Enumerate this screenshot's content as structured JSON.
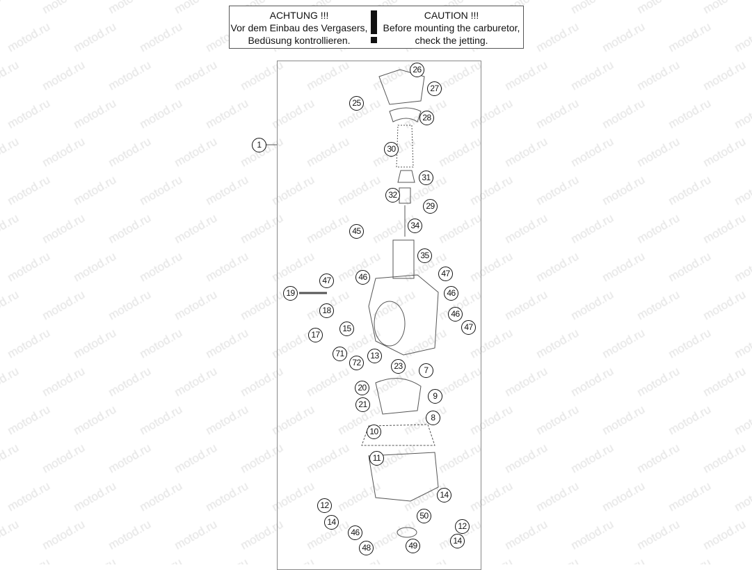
{
  "watermark": "motod.ru",
  "caution": {
    "de_title": "ACHTUNG !!!",
    "de_line1": "Vor dem Einbau des Vergasers,",
    "de_line2": "Bedüsung kontrollieren.",
    "en_title": "CAUTION !!!",
    "en_line1": "Before mounting the carburetor,",
    "en_line2": "check the jetting."
  },
  "callouts": [
    "26",
    "27",
    "25",
    "28",
    "1",
    "30",
    "31",
    "32",
    "29",
    "34",
    "45",
    "35",
    "47",
    "46",
    "47",
    "46",
    "19",
    "18",
    "46",
    "47",
    "15",
    "17",
    "71",
    "72",
    "13",
    "23",
    "7",
    "20",
    "9",
    "21",
    "8",
    "10",
    "11",
    "14",
    "12",
    "50",
    "14",
    "12",
    "46",
    "49",
    "14",
    "48"
  ]
}
